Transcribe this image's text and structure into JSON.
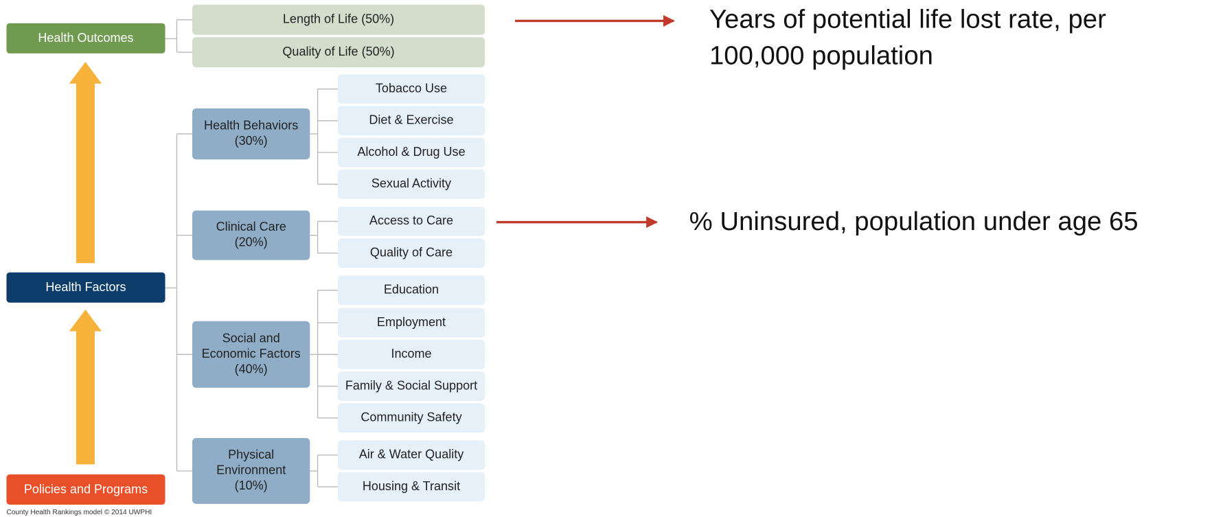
{
  "outcomes": {
    "label": "Health Outcomes",
    "children": [
      "Length of Life (50%)",
      "Quality of Life (50%)"
    ]
  },
  "factors": {
    "label": "Health Factors",
    "groups": [
      {
        "lines": [
          "Health Behaviors",
          "(30%)"
        ],
        "children": [
          "Tobacco Use",
          "Diet & Exercise",
          "Alcohol & Drug Use",
          "Sexual Activity"
        ]
      },
      {
        "lines": [
          "Clinical Care",
          "(20%)"
        ],
        "children": [
          "Access to Care",
          "Quality of Care"
        ]
      },
      {
        "lines": [
          "Social and",
          "Economic Factors",
          "(40%)"
        ],
        "children": [
          "Education",
          "Employment",
          "Income",
          "Family & Social Support",
          "Community Safety"
        ]
      },
      {
        "lines": [
          "Physical",
          "Environment",
          "(10%)"
        ],
        "children": [
          "Air & Water Quality",
          "Housing & Transit"
        ]
      }
    ]
  },
  "policies": {
    "label": "Policies and Programs"
  },
  "annotations": [
    {
      "lines": [
        "Years of potential life lost rate, per",
        "100,000 population"
      ]
    },
    {
      "lines": [
        "% Uninsured, population under age 65"
      ]
    }
  ],
  "footer": "County Health Rankings model © 2014 UWPHI"
}
